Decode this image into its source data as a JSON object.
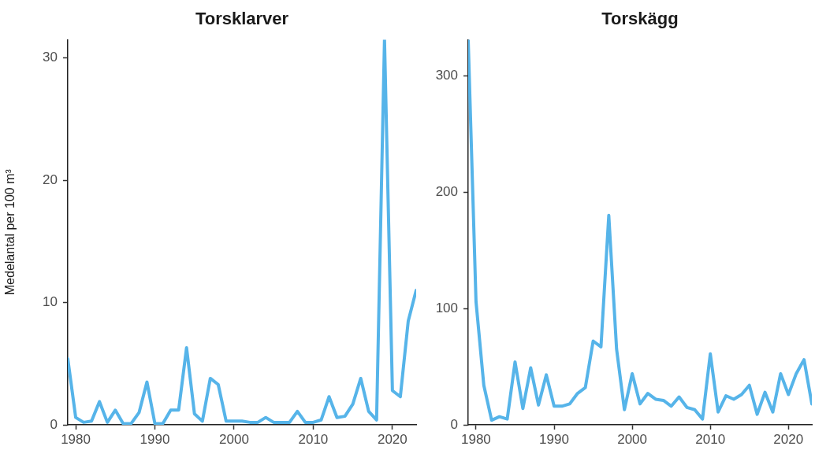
{
  "chart_data": [
    {
      "type": "line",
      "title": "Torsklarver",
      "ylabel": "Medelantal per 100 m³",
      "x": [
        1979,
        1980,
        1981,
        1982,
        1983,
        1984,
        1985,
        1986,
        1987,
        1988,
        1989,
        1990,
        1991,
        1992,
        1993,
        1994,
        1995,
        1996,
        1997,
        1998,
        1999,
        2000,
        2001,
        2002,
        2003,
        2004,
        2005,
        2006,
        2007,
        2008,
        2009,
        2010,
        2011,
        2012,
        2013,
        2014,
        2015,
        2016,
        2017,
        2018,
        2019,
        2020,
        2021,
        2022,
        2023
      ],
      "series": [
        {
          "color": "#56b4e9",
          "values": [
            5.4,
            0.6,
            0.2,
            0.3,
            1.9,
            0.2,
            1.2,
            0.1,
            0.1,
            1.0,
            3.5,
            0.1,
            0.1,
            1.2,
            1.2,
            6.3,
            0.9,
            0.3,
            3.8,
            3.3,
            0.3,
            0.3,
            0.3,
            0.2,
            0.2,
            0.6,
            0.2,
            0.2,
            0.2,
            1.1,
            0.2,
            0.2,
            0.4,
            2.3,
            0.6,
            0.7,
            1.7,
            3.8,
            1.1,
            0.4,
            31.5,
            2.8,
            2.3,
            8.5,
            11.0
          ]
        }
      ],
      "xlim": [
        1979,
        2023
      ],
      "xticks": [
        1980,
        1990,
        2000,
        2010,
        2020
      ],
      "ylim": [
        0,
        31.5
      ],
      "yticks": [
        0,
        10,
        20,
        30
      ]
    },
    {
      "type": "line",
      "title": "Torskägg",
      "x": [
        1979,
        1980,
        1981,
        1982,
        1983,
        1984,
        1985,
        1986,
        1987,
        1988,
        1989,
        1990,
        1991,
        1992,
        1993,
        1994,
        1995,
        1996,
        1997,
        1998,
        1999,
        2000,
        2001,
        2002,
        2003,
        2004,
        2005,
        2006,
        2007,
        2008,
        2009,
        2010,
        2011,
        2012,
        2013,
        2014,
        2015,
        2016,
        2017,
        2018,
        2019,
        2020,
        2021,
        2022,
        2023
      ],
      "series": [
        {
          "color": "#56b4e9",
          "values": [
            331,
            106,
            34,
            4,
            7,
            5,
            54,
            14,
            49,
            17,
            43,
            16,
            16,
            18,
            27,
            32,
            72,
            67,
            180,
            65,
            13,
            44,
            18,
            27,
            22,
            21,
            16,
            24,
            15,
            13,
            5,
            61,
            11,
            25,
            22,
            26,
            34,
            9,
            28,
            11,
            44,
            26,
            44,
            56,
            18
          ]
        }
      ],
      "xlim": [
        1979,
        2023
      ],
      "xticks": [
        1980,
        1990,
        2000,
        2010,
        2020
      ],
      "ylim": [
        0,
        331
      ],
      "yticks": [
        0,
        100,
        200,
        300
      ]
    }
  ]
}
